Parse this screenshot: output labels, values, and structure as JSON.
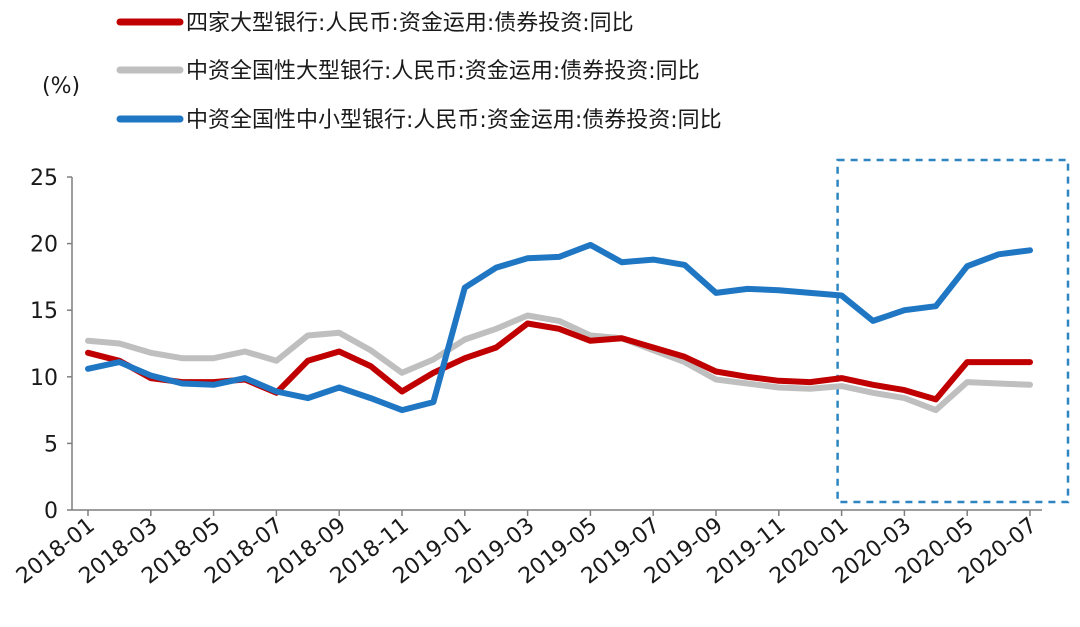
{
  "chart_data": {
    "type": "line",
    "ylabel": "(%)",
    "ylim": [
      0,
      25
    ],
    "yticks": [
      0,
      5,
      10,
      15,
      20,
      25
    ],
    "grid": false,
    "legend_position": "top-left",
    "x": [
      "2018-01",
      "2018-02",
      "2018-03",
      "2018-04",
      "2018-05",
      "2018-06",
      "2018-07",
      "2018-08",
      "2018-09",
      "2018-10",
      "2018-11",
      "2018-12",
      "2019-01",
      "2019-02",
      "2019-03",
      "2019-04",
      "2019-05",
      "2019-06",
      "2019-07",
      "2019-08",
      "2019-09",
      "2019-10",
      "2019-11",
      "2019-12",
      "2020-01",
      "2020-02",
      "2020-03",
      "2020-04",
      "2020-05",
      "2020-06",
      "2020-07"
    ],
    "xtick_labels": [
      "2018-01",
      "2018-03",
      "2018-05",
      "2018-07",
      "2018-09",
      "2018-11",
      "2019-01",
      "2019-03",
      "2019-05",
      "2019-07",
      "2019-09",
      "2019-11",
      "2020-01",
      "2020-03",
      "2020-05",
      "2020-07"
    ],
    "series": [
      {
        "name": "四家大型银行:人民币:资金运用:债券投资:同比",
        "color": "#c00000",
        "values": [
          11.8,
          11.2,
          9.9,
          9.6,
          9.6,
          9.8,
          8.8,
          11.2,
          11.9,
          10.8,
          8.9,
          10.3,
          11.4,
          12.2,
          14.0,
          13.6,
          12.7,
          12.9,
          12.2,
          11.5,
          10.4,
          10.0,
          9.7,
          9.6,
          9.9,
          9.4,
          9.0,
          8.3,
          11.1,
          11.1,
          11.1
        ]
      },
      {
        "name": "中资全国性大型银行:人民币:资金运用:债券投资:同比",
        "color": "#bfbfbf",
        "values": [
          12.7,
          12.5,
          11.8,
          11.4,
          11.4,
          11.9,
          11.2,
          13.1,
          13.3,
          12.0,
          10.3,
          11.3,
          12.8,
          13.6,
          14.6,
          14.2,
          13.1,
          12.9,
          12.0,
          11.1,
          9.8,
          9.5,
          9.2,
          9.1,
          9.3,
          8.8,
          8.4,
          7.5,
          9.6,
          9.5,
          9.4
        ]
      },
      {
        "name": "中资全国性中小型银行:人民币:资金运用:债券投资:同比",
        "color": "#1f77c4",
        "values": [
          10.6,
          11.1,
          10.1,
          9.5,
          9.4,
          9.9,
          8.9,
          8.4,
          9.2,
          8.4,
          7.5,
          8.1,
          16.7,
          18.2,
          18.9,
          19.0,
          19.9,
          18.6,
          18.8,
          18.4,
          16.3,
          16.6,
          16.5,
          16.3,
          16.1,
          14.2,
          15.0,
          15.3,
          18.3,
          19.2,
          19.5
        ]
      }
    ],
    "highlight_box": {
      "from": "2020-01",
      "to": "2020-07",
      "style": "dashed",
      "color": "#2e86c1"
    }
  }
}
